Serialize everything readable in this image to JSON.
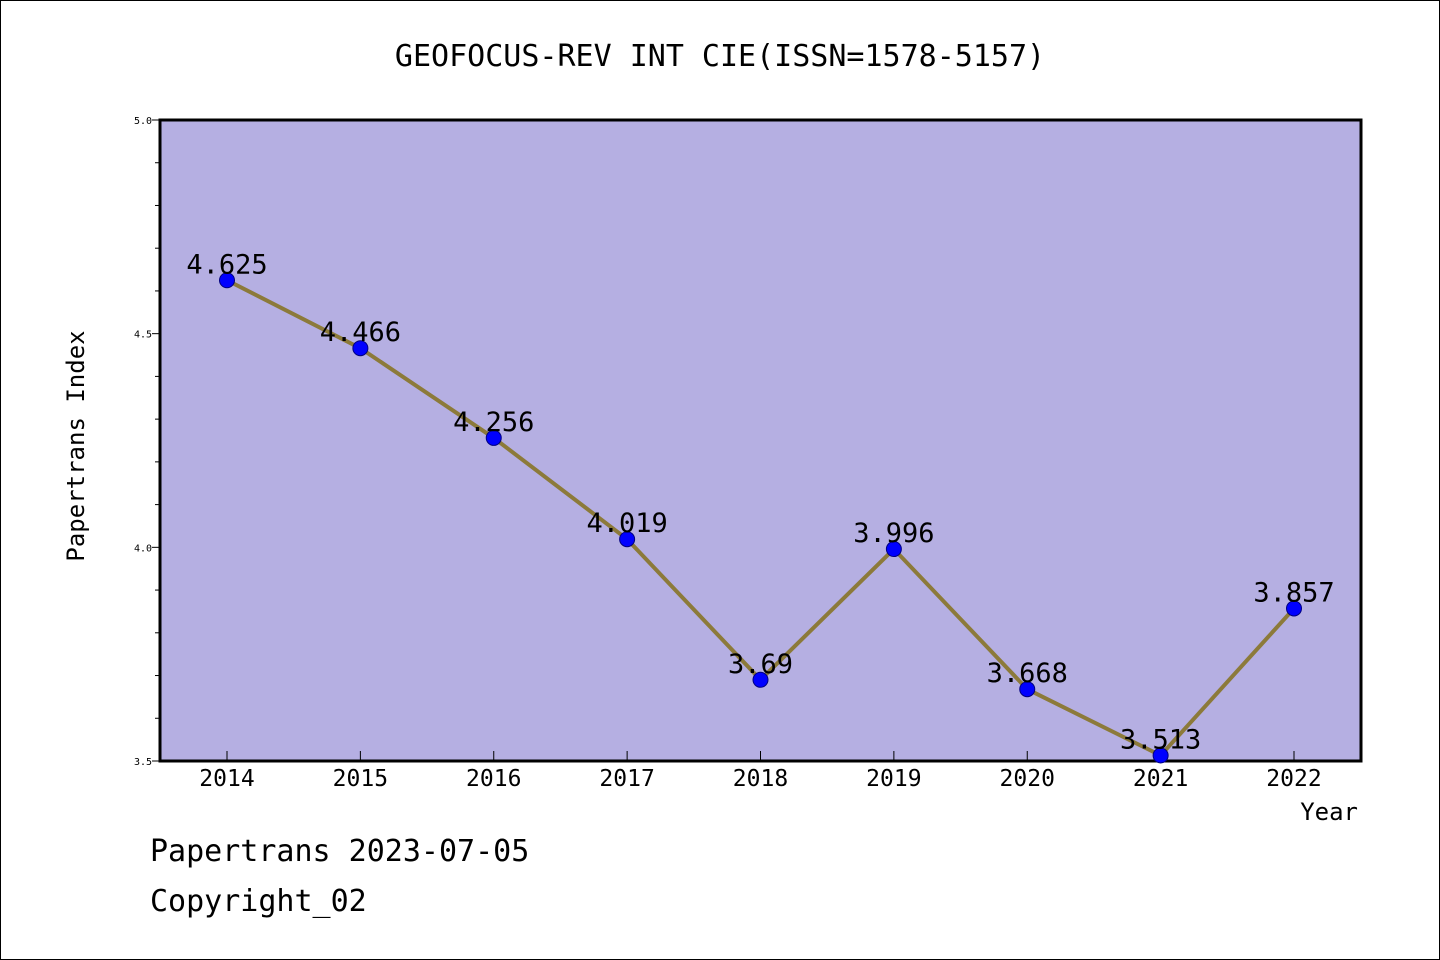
{
  "footer": {
    "line1": "Papertrans 2023-07-05",
    "line2": "Copyright_02"
  },
  "colors": {
    "plot_background": "#b5afe2",
    "line": "#8c7a3a",
    "marker": "#0000ff",
    "marker_edge": "#000080"
  },
  "chart_data": {
    "type": "line",
    "title": "GEOFOCUS-REV INT CIE(ISSN=1578-5157)",
    "xlabel": "Year",
    "ylabel": "Papertrans Index",
    "categories": [
      "2014",
      "2015",
      "2016",
      "2017",
      "2018",
      "2019",
      "2020",
      "2021",
      "2022"
    ],
    "series": [
      {
        "values": [
          4.625,
          4.466,
          4.256,
          4.019,
          3.69,
          3.996,
          3.668,
          3.513,
          3.857
        ],
        "data_labels": [
          "4.625",
          "4.466",
          "4.256",
          "4.019",
          "3.69",
          "3.996",
          "3.668",
          "3.513",
          "3.857"
        ]
      }
    ],
    "ylim": [
      3.5,
      5.0
    ],
    "yticks": [
      "3.5",
      "4.0",
      "4.5",
      "5.0"
    ],
    "grid": false,
    "legend": "none"
  }
}
